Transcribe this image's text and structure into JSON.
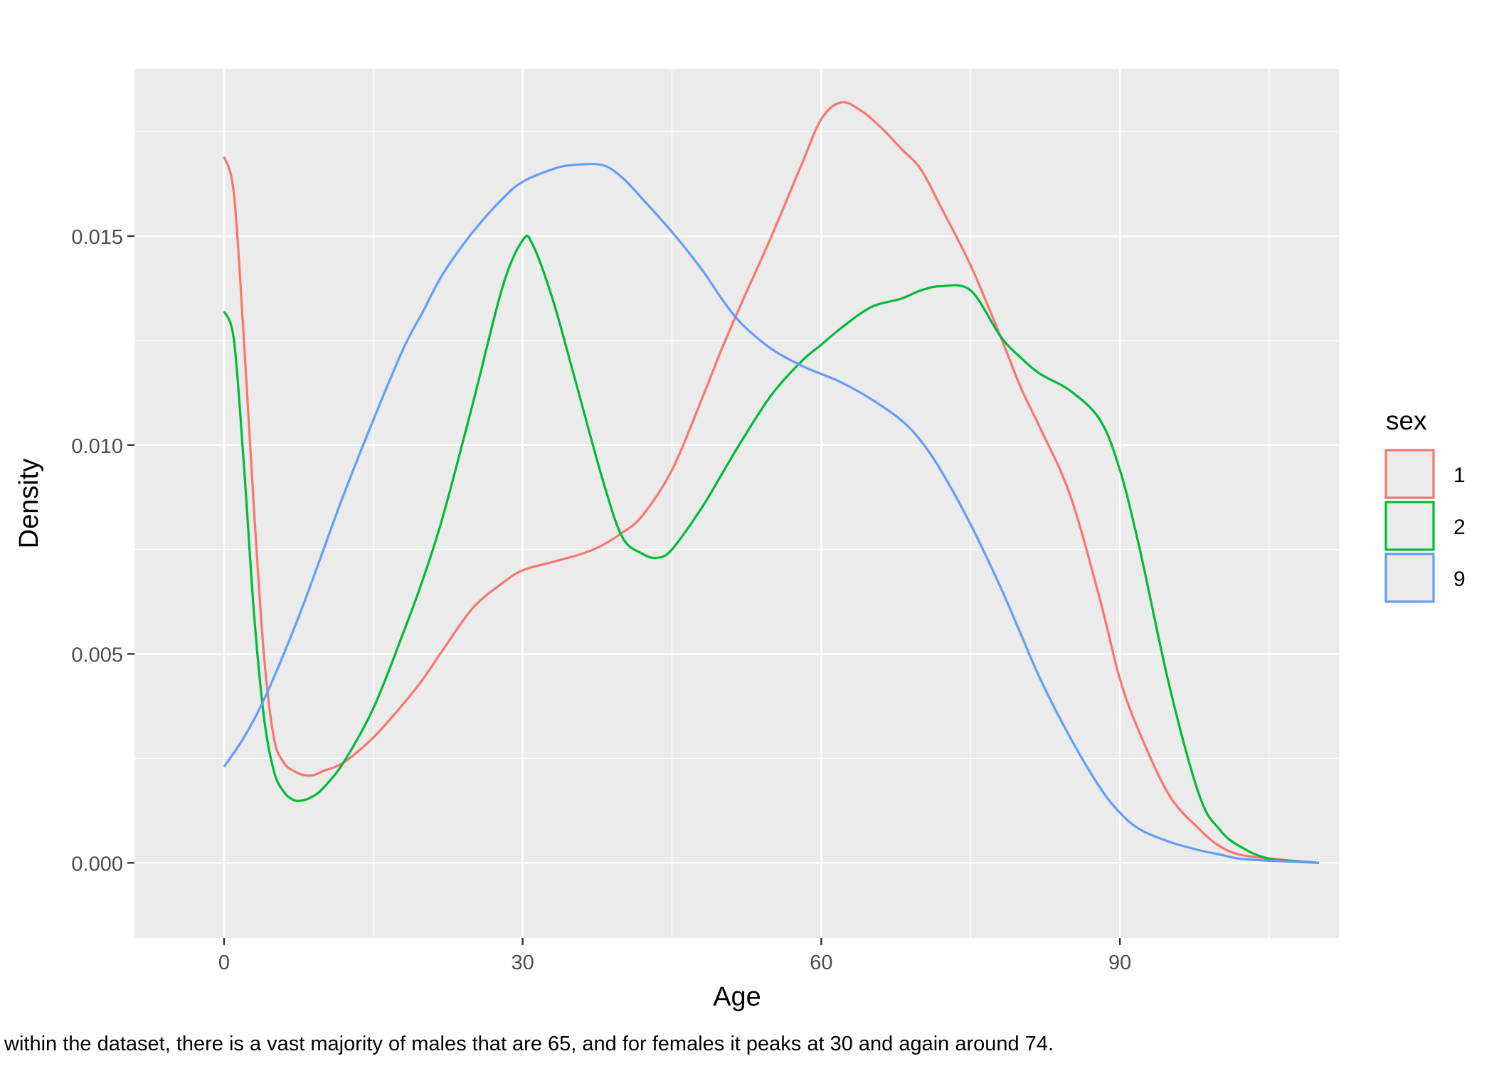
{
  "chart_data": {
    "type": "line",
    "title": "",
    "xlabel": "Age",
    "ylabel": "Density",
    "xlim": [
      -9,
      112
    ],
    "ylim": [
      -0.0018,
      0.019
    ],
    "x_ticks": [
      0,
      30,
      60,
      90
    ],
    "x_tick_labels": [
      "0",
      "30",
      "60",
      "90"
    ],
    "y_ticks": [
      0.0,
      0.005,
      0.01,
      0.015
    ],
    "y_tick_labels": [
      "0.000",
      "0.005",
      "0.010",
      "0.015"
    ],
    "grid": true,
    "legend": {
      "title": "sex",
      "position": "right"
    },
    "series": [
      {
        "name": "1",
        "color": "#F8766D",
        "x": [
          0,
          1,
          2,
          3,
          4,
          5,
          6,
          7,
          8,
          9,
          10,
          12,
          15,
          18,
          20,
          22,
          25,
          28,
          30,
          33,
          36,
          38,
          40,
          42,
          45,
          48,
          50,
          52,
          55,
          58,
          60,
          62,
          64,
          66,
          68,
          70,
          72,
          75,
          78,
          80,
          82,
          85,
          88,
          90,
          92,
          95,
          98,
          100,
          102,
          105,
          110
        ],
        "y": [
          0.0169,
          0.016,
          0.0125,
          0.0085,
          0.005,
          0.003,
          0.0024,
          0.0022,
          0.0021,
          0.0021,
          0.0022,
          0.0024,
          0.003,
          0.0038,
          0.0044,
          0.0051,
          0.0061,
          0.0067,
          0.007,
          0.0072,
          0.0074,
          0.0076,
          0.0079,
          0.0083,
          0.0094,
          0.0111,
          0.0123,
          0.0134,
          0.015,
          0.0167,
          0.0178,
          0.0182,
          0.018,
          0.0176,
          0.0171,
          0.0166,
          0.0157,
          0.0143,
          0.0126,
          0.0114,
          0.0104,
          0.0088,
          0.0063,
          0.0044,
          0.0031,
          0.0016,
          0.0008,
          0.0004,
          0.0002,
          0.0001,
          0.0
        ]
      },
      {
        "name": "2",
        "color": "#00BA38",
        "x": [
          0,
          1,
          2,
          3,
          4,
          5,
          6,
          7,
          8,
          9,
          10,
          12,
          15,
          18,
          20,
          22,
          25,
          28,
          30,
          31,
          33,
          35,
          38,
          40,
          42,
          43.5,
          45,
          48,
          50,
          52,
          55,
          58,
          60,
          62,
          65,
          68,
          70,
          72,
          75,
          78,
          80,
          82,
          85,
          88,
          90,
          92,
          95,
          98,
          100,
          102,
          105,
          110
        ],
        "y": [
          0.0132,
          0.0125,
          0.0095,
          0.006,
          0.0035,
          0.0022,
          0.0017,
          0.0015,
          0.0015,
          0.0016,
          0.0018,
          0.0024,
          0.0037,
          0.0055,
          0.0068,
          0.0083,
          0.011,
          0.0138,
          0.0149,
          0.0148,
          0.0135,
          0.0118,
          0.0092,
          0.0078,
          0.0074,
          0.0073,
          0.0075,
          0.0085,
          0.0093,
          0.0101,
          0.0112,
          0.012,
          0.0124,
          0.0128,
          0.0133,
          0.0135,
          0.0137,
          0.0138,
          0.0137,
          0.0126,
          0.0121,
          0.0117,
          0.0113,
          0.0106,
          0.0094,
          0.0075,
          0.0042,
          0.0016,
          0.0008,
          0.0004,
          0.0001,
          0.0
        ]
      },
      {
        "name": "9",
        "color": "#619CFF",
        "x": [
          0,
          2,
          4,
          6,
          8,
          10,
          12,
          15,
          18,
          20,
          22,
          25,
          28,
          30,
          33,
          35,
          38,
          40,
          42,
          45,
          48,
          50,
          52,
          55,
          58,
          60,
          62,
          65,
          68,
          70,
          72,
          75,
          78,
          80,
          82,
          85,
          88,
          90,
          92,
          95,
          98,
          100,
          102,
          105,
          110
        ],
        "y": [
          0.0023,
          0.003,
          0.0039,
          0.005,
          0.0062,
          0.0075,
          0.0088,
          0.0106,
          0.0123,
          0.0132,
          0.0141,
          0.0151,
          0.0159,
          0.0163,
          0.0166,
          0.0167,
          0.0167,
          0.0164,
          0.0159,
          0.0151,
          0.0142,
          0.0135,
          0.0129,
          0.0123,
          0.0119,
          0.0117,
          0.0115,
          0.0111,
          0.0106,
          0.0101,
          0.0094,
          0.0081,
          0.0066,
          0.0055,
          0.0044,
          0.003,
          0.0018,
          0.0012,
          0.0008,
          0.0005,
          0.0003,
          0.0002,
          0.0001,
          5e-05,
          0.0
        ]
      }
    ]
  },
  "caption": "within the dataset, there is a vast majority of males that are 65, and for females it peaks at 30 and again around 74."
}
